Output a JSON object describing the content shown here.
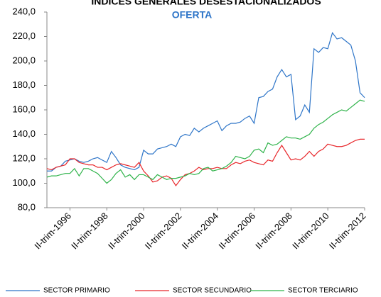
{
  "chart_data": {
    "type": "line",
    "title": "ÍNDICES GENERALES DESESTACIONALIZADOS",
    "subtitle": "OFERTA",
    "categories": [
      null,
      null,
      null,
      null,
      null,
      "II-trim-1996",
      null,
      null,
      null,
      null,
      null,
      null,
      null,
      "II-trim-1998",
      null,
      null,
      null,
      null,
      null,
      null,
      null,
      "II-trim-2000",
      null,
      null,
      null,
      null,
      null,
      null,
      null,
      "II-trim-2002",
      null,
      null,
      null,
      null,
      null,
      null,
      null,
      "II-trim-2004",
      null,
      null,
      null,
      null,
      null,
      null,
      null,
      "II-trim-2006",
      null,
      null,
      null,
      null,
      null,
      null,
      null,
      "II-trim-2008",
      null,
      null,
      null,
      null,
      null,
      null,
      null,
      "II-trim-2010",
      null,
      null,
      null,
      null,
      null,
      null,
      null,
      "II-trim-2012"
    ],
    "series": [
      {
        "name": "SECTOR PRIMARIO",
        "color": "#2e75c8",
        "values": [
          110,
          110,
          113,
          114,
          118,
          119,
          120,
          118,
          117,
          118,
          120,
          121,
          119,
          117,
          126,
          121,
          115,
          113,
          112,
          111,
          113,
          127,
          124,
          124,
          128,
          129,
          130,
          132,
          130,
          138,
          140,
          139,
          145,
          142,
          145,
          147,
          149,
          151,
          143,
          147,
          149,
          149,
          150,
          153,
          155,
          149,
          170,
          171,
          175,
          177,
          187,
          193,
          187,
          189,
          152,
          155,
          164,
          158,
          210,
          207,
          211,
          210,
          223,
          218,
          219,
          216,
          213,
          200,
          174,
          170
        ]
      },
      {
        "name": "SECTOR SECUNDARIO",
        "color": "#e8262a",
        "values": [
          112,
          111,
          113,
          114,
          115,
          120,
          120,
          117,
          116,
          115,
          115,
          113,
          113,
          111,
          113,
          115,
          116,
          115,
          114,
          113,
          117,
          110,
          106,
          101,
          102,
          105,
          106,
          104,
          98,
          103,
          107,
          108,
          110,
          113,
          111,
          112,
          112,
          113,
          112,
          112,
          115,
          117,
          116,
          118,
          119,
          117,
          116,
          115,
          119,
          118,
          125,
          131,
          125,
          119,
          120,
          119,
          122,
          126,
          122,
          126,
          128,
          132,
          131,
          130,
          130,
          131,
          133,
          135,
          136,
          136
        ]
      },
      {
        "name": "SECTOR TERCIARIO",
        "color": "#2fb34a",
        "values": [
          105,
          106,
          106,
          107,
          108,
          108,
          112,
          106,
          112,
          112,
          110,
          108,
          104,
          100,
          103,
          108,
          111,
          105,
          107,
          103,
          107,
          107,
          105,
          103,
          107,
          105,
          103,
          104,
          104,
          105,
          106,
          108,
          107,
          108,
          112,
          113,
          110,
          111,
          112,
          114,
          117,
          122,
          121,
          120,
          122,
          127,
          128,
          125,
          133,
          131,
          132,
          135,
          138,
          137,
          137,
          136,
          138,
          140,
          145,
          148,
          150,
          153,
          156,
          158,
          160,
          159,
          162,
          165,
          168,
          167
        ]
      }
    ],
    "ylim": [
      80,
      240
    ],
    "yticks": [
      {
        "value": 80,
        "label": "80,0"
      },
      {
        "value": 100,
        "label": "100,0"
      },
      {
        "value": 120,
        "label": "120,0"
      },
      {
        "value": 140,
        "label": "140,0"
      },
      {
        "value": 160,
        "label": "160,0"
      },
      {
        "value": 180,
        "label": "180,0"
      },
      {
        "value": 200,
        "label": "200,0"
      },
      {
        "value": 220,
        "label": "220,0"
      },
      {
        "value": 240,
        "label": "240,0"
      }
    ],
    "grid": false,
    "legend": "bottom"
  }
}
